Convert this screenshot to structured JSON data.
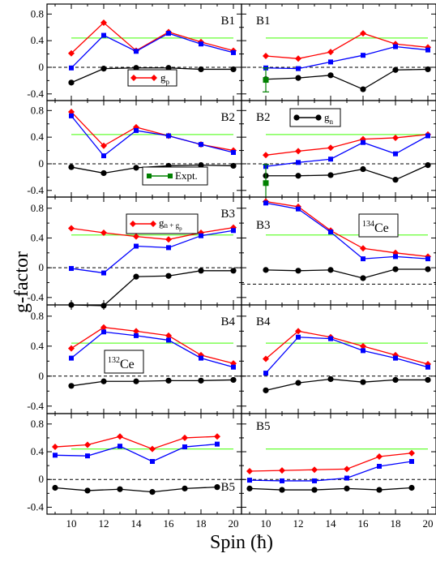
{
  "figure": {
    "ylabel": "g-factor",
    "xlabel": "Spin (ħ)",
    "x_ticks": [
      "10",
      "12",
      "14",
      "16",
      "18",
      "20"
    ],
    "y_ticks": [
      "0.8",
      "0.4",
      "0",
      "-0.4"
    ],
    "legend": {
      "gp": "g",
      "gp_sub": "p",
      "gn": "g",
      "gn_sub": "n",
      "gnp": "g",
      "gnp_sub": "n + g",
      "gnp_sub2": "p",
      "expt": "Expt."
    },
    "nucleus_labels": [
      {
        "sup": "134",
        "base": "Ce"
      },
      {
        "sup": "132",
        "base": "Ce"
      }
    ]
  },
  "colors": {
    "gp": "#ff0000",
    "gnp_blue": "#0000ff",
    "gn": "#000000",
    "expt": "#008000",
    "reference_line": "#66ff33"
  },
  "chart_data": {
    "type": "line",
    "xlim": [
      8.5,
      20.5
    ],
    "ylim": [
      -0.5,
      0.95
    ],
    "xlabel": "Spin (ħ)",
    "ylabel": "g-factor",
    "panels": [
      {
        "col": 0,
        "row": 0,
        "label": "B1",
        "reference": 0.44,
        "dashed_zero": 0,
        "series": [
          {
            "name": "gp",
            "x": [
              10,
              12,
              14,
              16,
              18,
              20
            ],
            "y": [
              0.21,
              0.67,
              0.25,
              0.53,
              0.38,
              0.25
            ]
          },
          {
            "name": "gn+gp",
            "x": [
              10,
              12,
              14,
              16,
              18,
              20
            ],
            "y": [
              -0.01,
              0.48,
              0.24,
              0.51,
              0.35,
              0.22
            ]
          },
          {
            "name": "gn",
            "x": [
              10,
              12,
              14,
              16,
              18,
              20
            ],
            "y": [
              -0.23,
              -0.02,
              -0.01,
              -0.01,
              -0.03,
              -0.03
            ]
          }
        ]
      },
      {
        "col": 1,
        "row": 0,
        "label": "B1",
        "reference": 0.44,
        "dashed_zero": 0,
        "series": [
          {
            "name": "gp",
            "x": [
              10,
              12,
              14,
              16,
              18,
              20
            ],
            "y": [
              0.17,
              0.13,
              0.23,
              0.51,
              0.35,
              0.3
            ]
          },
          {
            "name": "gn+gp",
            "x": [
              10,
              12,
              14,
              16,
              18,
              20
            ],
            "y": [
              -0.01,
              -0.02,
              0.08,
              0.18,
              0.31,
              0.26
            ]
          },
          {
            "name": "gn",
            "x": [
              10,
              12,
              14,
              16,
              18,
              20
            ],
            "y": [
              -0.18,
              -0.16,
              -0.12,
              -0.33,
              -0.04,
              -0.03
            ]
          }
        ],
        "expt": {
          "x": 10,
          "y": -0.19,
          "err": 0.18
        }
      },
      {
        "col": 0,
        "row": 1,
        "label": "B2",
        "reference": 0.44,
        "dashed_zero": 0,
        "series": [
          {
            "name": "gp",
            "x": [
              10,
              12,
              14,
              16,
              18,
              20
            ],
            "y": [
              0.78,
              0.27,
              0.55,
              0.42,
              0.29,
              0.2
            ]
          },
          {
            "name": "gn+gp",
            "x": [
              10,
              12,
              14,
              16,
              18,
              20
            ],
            "y": [
              0.72,
              0.12,
              0.5,
              0.42,
              0.29,
              0.17
            ]
          },
          {
            "name": "gn",
            "x": [
              10,
              12,
              14,
              16,
              18,
              20
            ],
            "y": [
              -0.05,
              -0.14,
              -0.06,
              -0.03,
              -0.02,
              -0.03
            ]
          }
        ]
      },
      {
        "col": 1,
        "row": 1,
        "label": "B2",
        "reference": 0.44,
        "dashed_zero": 0,
        "series": [
          {
            "name": "gp",
            "x": [
              10,
              12,
              14,
              16,
              18,
              20
            ],
            "y": [
              0.13,
              0.19,
              0.24,
              0.37,
              0.39,
              0.44
            ]
          },
          {
            "name": "gn+gp",
            "x": [
              10,
              12,
              14,
              16,
              18,
              20
            ],
            "y": [
              -0.04,
              0.02,
              0.07,
              0.32,
              0.15,
              0.42
            ]
          },
          {
            "name": "gn",
            "x": [
              10,
              12,
              14,
              16,
              18,
              20
            ],
            "y": [
              -0.18,
              -0.18,
              -0.17,
              -0.08,
              -0.24,
              -0.02
            ]
          }
        ],
        "expt": {
          "x": 10,
          "y": -0.29,
          "err": 0.28
        }
      },
      {
        "col": 0,
        "row": 2,
        "label": "B3",
        "reference": 0.44,
        "dashed_zero": 0,
        "series": [
          {
            "name": "gp",
            "x": [
              10,
              12,
              14,
              16,
              18,
              20
            ],
            "y": [
              0.53,
              0.47,
              0.42,
              0.38,
              0.47,
              0.54
            ]
          },
          {
            "name": "gn+gp",
            "x": [
              10,
              12,
              14,
              16,
              18,
              20
            ],
            "y": [
              -0.01,
              -0.07,
              0.29,
              0.27,
              0.43,
              0.5
            ]
          },
          {
            "name": "gn",
            "x": [
              10,
              12,
              14,
              16,
              18,
              20
            ],
            "y": [
              -0.5,
              -0.51,
              -0.12,
              -0.11,
              -0.04,
              -0.04
            ]
          }
        ]
      },
      {
        "col": 1,
        "row": 2,
        "label": "B3",
        "reference": 0.44,
        "dashed_zero": -0.22,
        "series": [
          {
            "name": "gp",
            "x": [
              10,
              12,
              14,
              16,
              18,
              20
            ],
            "y": [
              0.89,
              0.82,
              0.5,
              0.26,
              0.2,
              0.15
            ]
          },
          {
            "name": "gn+gp",
            "x": [
              10,
              12,
              14,
              16,
              18,
              20
            ],
            "y": [
              0.87,
              0.79,
              0.48,
              0.12,
              0.15,
              0.12
            ]
          },
          {
            "name": "gn",
            "x": [
              10,
              12,
              14,
              16,
              18,
              20
            ],
            "y": [
              -0.03,
              -0.04,
              -0.03,
              -0.14,
              -0.02,
              -0.02
            ]
          }
        ]
      },
      {
        "col": 0,
        "row": 3,
        "label": "B4",
        "reference": 0.44,
        "dashed_zero": 0,
        "series": [
          {
            "name": "gp",
            "x": [
              10,
              12,
              14,
              16,
              18,
              20
            ],
            "y": [
              0.37,
              0.65,
              0.6,
              0.54,
              0.28,
              0.17
            ]
          },
          {
            "name": "gn+gp",
            "x": [
              10,
              12,
              14,
              16,
              18,
              20
            ],
            "y": [
              0.24,
              0.59,
              0.54,
              0.48,
              0.24,
              0.12
            ]
          },
          {
            "name": "gn",
            "x": [
              10,
              12,
              14,
              16,
              18,
              20
            ],
            "y": [
              -0.13,
              -0.07,
              -0.07,
              -0.06,
              -0.06,
              -0.05
            ]
          }
        ]
      },
      {
        "col": 1,
        "row": 3,
        "label": "B4",
        "reference": 0.44,
        "dashed_zero": 0,
        "series": [
          {
            "name": "gp",
            "x": [
              10,
              12,
              14,
              16,
              18,
              20
            ],
            "y": [
              0.23,
              0.6,
              0.52,
              0.4,
              0.28,
              0.16
            ]
          },
          {
            "name": "gn+gp",
            "x": [
              10,
              12,
              14,
              16,
              18,
              20
            ],
            "y": [
              0.04,
              0.52,
              0.5,
              0.34,
              0.24,
              0.12
            ]
          },
          {
            "name": "gn",
            "x": [
              10,
              12,
              14,
              16,
              18,
              20
            ],
            "y": [
              -0.19,
              -0.09,
              -0.04,
              -0.08,
              -0.05,
              -0.05
            ]
          }
        ]
      },
      {
        "col": 0,
        "row": 4,
        "label": "B5",
        "reference": 0.44,
        "dashed_zero": 0,
        "series": [
          {
            "name": "gp",
            "x": [
              9,
              11,
              13,
              15,
              17,
              19
            ],
            "y": [
              0.47,
              0.5,
              0.62,
              0.44,
              0.6,
              0.62
            ]
          },
          {
            "name": "gn+gp",
            "x": [
              9,
              11,
              13,
              15,
              17,
              19
            ],
            "y": [
              0.35,
              0.34,
              0.48,
              0.26,
              0.47,
              0.51
            ]
          },
          {
            "name": "gn",
            "x": [
              9,
              11,
              13,
              15,
              17,
              19
            ],
            "y": [
              -0.12,
              -0.16,
              -0.14,
              -0.18,
              -0.13,
              -0.11
            ]
          }
        ]
      },
      {
        "col": 1,
        "row": 4,
        "label": "B5",
        "reference": 0.44,
        "dashed_zero": 0,
        "series": [
          {
            "name": "gp",
            "x": [
              9,
              11,
              13,
              15,
              17,
              19
            ],
            "y": [
              0.12,
              0.13,
              0.14,
              0.15,
              0.33,
              0.38
            ]
          },
          {
            "name": "gn+gp",
            "x": [
              9,
              11,
              13,
              15,
              17,
              19
            ],
            "y": [
              -0.01,
              -0.02,
              -0.02,
              0.02,
              0.19,
              0.26
            ]
          },
          {
            "name": "gn",
            "x": [
              9,
              11,
              13,
              15,
              17,
              19
            ],
            "y": [
              -0.13,
              -0.15,
              -0.15,
              -0.13,
              -0.15,
              -0.12
            ]
          }
        ]
      }
    ]
  }
}
